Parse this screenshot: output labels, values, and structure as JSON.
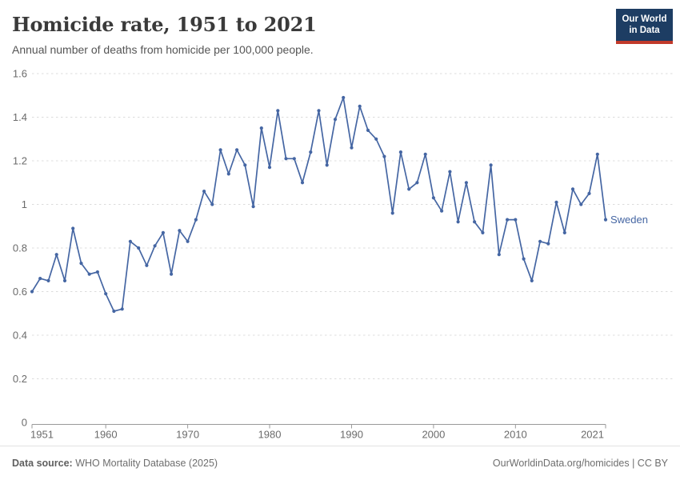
{
  "header": {
    "title": "Homicide rate, 1951 to 2021",
    "subtitle": "Annual number of deaths from homicide per 100,000 people.",
    "logo": {
      "line1": "Our World",
      "line2": "in Data"
    }
  },
  "chart_data": {
    "type": "line",
    "title": "Homicide rate, 1951 to 2021",
    "xlabel": "",
    "ylabel": "",
    "x": [
      1951,
      1952,
      1953,
      1954,
      1955,
      1956,
      1957,
      1958,
      1959,
      1960,
      1961,
      1962,
      1963,
      1964,
      1965,
      1966,
      1967,
      1968,
      1969,
      1970,
      1971,
      1972,
      1973,
      1974,
      1975,
      1976,
      1977,
      1978,
      1979,
      1980,
      1981,
      1982,
      1983,
      1984,
      1985,
      1986,
      1987,
      1988,
      1989,
      1990,
      1991,
      1992,
      1993,
      1994,
      1995,
      1996,
      1997,
      1998,
      1999,
      2000,
      2001,
      2002,
      2003,
      2004,
      2005,
      2006,
      2007,
      2008,
      2009,
      2010,
      2011,
      2012,
      2013,
      2014,
      2015,
      2016,
      2017,
      2018,
      2019,
      2020,
      2021
    ],
    "series": [
      {
        "name": "Sweden",
        "color": "#4566a3",
        "values": [
          0.6,
          0.66,
          0.65,
          0.77,
          0.65,
          0.89,
          0.73,
          0.68,
          0.69,
          0.59,
          0.51,
          0.52,
          0.83,
          0.8,
          0.72,
          0.81,
          0.87,
          0.68,
          0.88,
          0.83,
          0.93,
          1.06,
          1.0,
          1.25,
          1.14,
          1.25,
          1.18,
          0.99,
          1.35,
          1.17,
          1.43,
          1.21,
          1.21,
          1.1,
          1.24,
          1.43,
          1.18,
          1.39,
          1.49,
          1.26,
          1.45,
          1.34,
          1.3,
          1.22,
          0.96,
          1.24,
          1.07,
          1.1,
          1.23,
          1.03,
          0.97,
          1.15,
          0.92,
          1.1,
          0.92,
          0.87,
          1.18,
          0.77,
          0.93,
          0.93,
          0.75,
          0.65,
          0.83,
          0.82,
          1.01,
          0.87,
          1.07,
          1.0,
          1.05,
          1.23,
          0.93
        ]
      }
    ],
    "ylim": [
      0,
      1.6
    ],
    "yticks": [
      0,
      0.2,
      0.4,
      0.6,
      0.8,
      1,
      1.2,
      1.4,
      1.6
    ],
    "ytick_labels": [
      "0",
      "0.2",
      "0.4",
      "0.6",
      "0.8",
      "1",
      "1.2",
      "1.4",
      "1.6"
    ],
    "xticks": [
      1951,
      1960,
      1970,
      1980,
      1990,
      2000,
      2010,
      2021
    ],
    "grid": "horizontal-dashed",
    "legend_position": "line-end-label"
  },
  "colors": {
    "line": "#4566a3",
    "grid": "#dcdcdc",
    "axis": "#9a9a9a",
    "axis_text": "#6b6b6b",
    "logo_bg": "#1d3d63",
    "logo_accent": "#c13a2b"
  },
  "footer": {
    "source_label": "Data source:",
    "source_value": "WHO Mortality Database (2025)",
    "credit": "OurWorldinData.org/homicides | CC BY"
  }
}
